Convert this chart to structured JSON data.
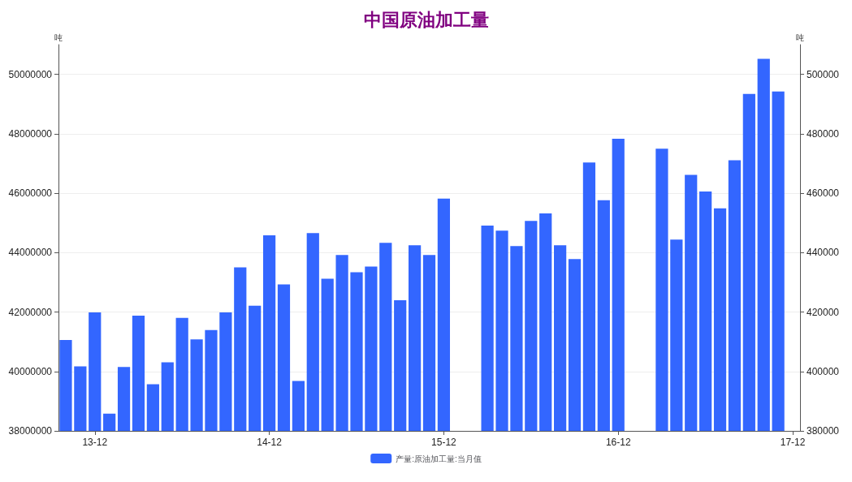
{
  "chart_data": {
    "type": "bar",
    "title": "中国原油加工量",
    "ylabel": "吨",
    "y2label": "吨",
    "categories": [
      null,
      null,
      "13-12",
      null,
      null,
      null,
      null,
      null,
      null,
      null,
      null,
      null,
      null,
      null,
      "14-12",
      null,
      null,
      null,
      null,
      null,
      null,
      null,
      null,
      null,
      null,
      null,
      "15-12",
      null,
      null,
      null,
      null,
      null,
      null,
      null,
      null,
      null,
      null,
      null,
      "16-12",
      null,
      null,
      null,
      null,
      null,
      null,
      null,
      null,
      null,
      null,
      null,
      "17-12"
    ],
    "series": [
      {
        "name": "产量:原油加工量:当月值",
        "color": "#3366ff",
        "values": [
          41060000,
          40170000,
          41990000,
          38580000,
          40150000,
          41880000,
          39570000,
          40310000,
          41800000,
          41080000,
          41390000,
          41990000,
          43500000,
          42210000,
          44580000,
          42930000,
          39680000,
          44660000,
          43120000,
          43920000,
          43340000,
          43530000,
          44330000,
          42400000,
          44250000,
          43920000,
          45820000,
          null,
          null,
          44910000,
          44740000,
          44220000,
          45070000,
          45320000,
          44250000,
          43780000,
          47030000,
          45760000,
          47830000,
          null,
          null,
          47500000,
          44440000,
          46620000,
          46060000,
          45490000,
          47110000,
          49340000,
          50520000,
          49420000,
          null
        ]
      }
    ],
    "ylim": [
      38000000,
      51000000
    ],
    "yticks": [
      38000000,
      40000000,
      42000000,
      44000000,
      46000000,
      48000000,
      50000000
    ],
    "y2lim": [
      380000,
      510000
    ],
    "y2ticks": [
      380000,
      400000,
      420000,
      440000,
      460000,
      480000,
      500000
    ],
    "grid": "y",
    "legend": "bottom"
  }
}
